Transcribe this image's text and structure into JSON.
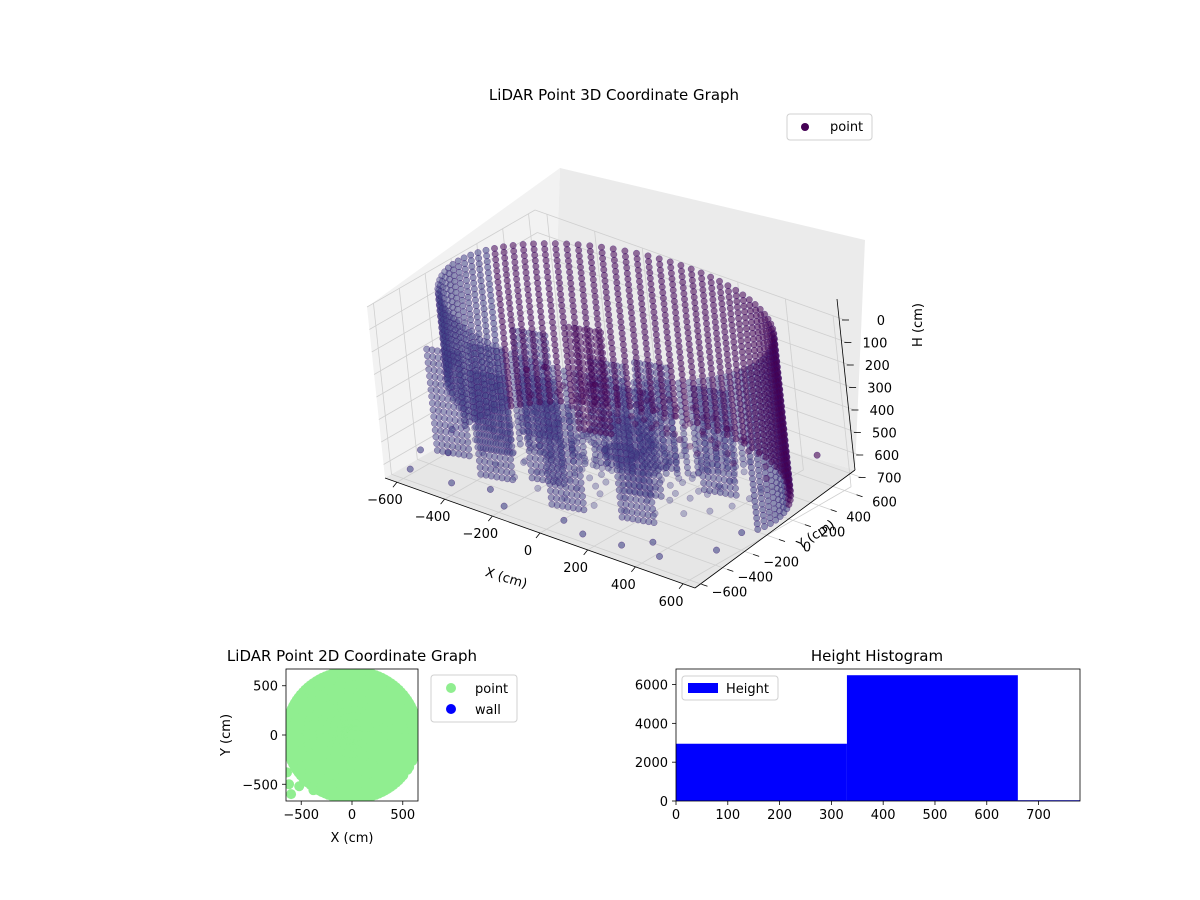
{
  "chart_data": [
    {
      "type": "scatter",
      "projection": "3d",
      "title": "LiDAR Point 3D Coordinate Graph",
      "xlabel": "X (cm)",
      "ylabel": "Y (cm)",
      "zlabel": "H (cm)",
      "xlim": [
        -650,
        650
      ],
      "ylim": [
        -650,
        650
      ],
      "zlim": [
        0,
        760
      ],
      "z_inverted": true,
      "xticks": [
        -600,
        -400,
        -200,
        0,
        200,
        400,
        600
      ],
      "yticks": [
        -600,
        -400,
        -200,
        0,
        200,
        400,
        600
      ],
      "zticks": [
        0,
        100,
        200,
        300,
        400,
        500,
        600,
        700
      ],
      "grid": true,
      "legend": {
        "placement": "top-right",
        "entries": [
          "point"
        ]
      },
      "series": [
        {
          "name": "point",
          "color": "#440154",
          "structure": {
            "outer_ring_radius": 620,
            "height_range": [
              0,
              700
            ],
            "height_step": 25,
            "angle_step_deg": 4
          },
          "outliers": [
            [
              -640,
              -140,
              710
            ],
            [
              -560,
              -610,
              700
            ],
            [
              -470,
              -470,
              640
            ],
            [
              -250,
              -560,
              690
            ],
            [
              180,
              -640,
              700
            ],
            [
              410,
              -520,
              690
            ],
            [
              600,
              -380,
              700
            ],
            [
              -600,
              150,
              600
            ],
            [
              -520,
              380,
              560
            ],
            [
              640,
              -250,
              650
            ],
            [
              -380,
              -620,
              690
            ],
            [
              320,
              -600,
              710
            ],
            [
              -620,
              -420,
              700
            ],
            [
              520,
              560,
              620
            ],
            [
              -150,
              -640,
              700
            ],
            [
              80,
              -600,
              690
            ],
            [
              600,
              200,
              560
            ],
            [
              -640,
              450,
              640
            ],
            [
              -440,
              600,
              680
            ],
            [
              480,
              -600,
              700
            ]
          ]
        }
      ]
    },
    {
      "type": "scatter",
      "title": "LiDAR Point 2D Coordinate Graph",
      "xlabel": "X (cm)",
      "ylabel": "Y (cm)",
      "xlim": [
        -650,
        650
      ],
      "ylim": [
        -670,
        670
      ],
      "xticks": [
        -500,
        0,
        500
      ],
      "yticks": [
        -500,
        0,
        500
      ],
      "legend": {
        "placement": "outside-right",
        "entries": [
          "point",
          "wall"
        ]
      },
      "series": [
        {
          "name": "point",
          "color": "#90ee90",
          "region": "disc",
          "radius": 650
        },
        {
          "name": "wall",
          "color": "#0000ff",
          "points": []
        }
      ]
    },
    {
      "type": "bar",
      "histogram": true,
      "title": "Height Histogram",
      "xlabel": "",
      "ylabel": "",
      "xlim": [
        0,
        780
      ],
      "ylim": [
        0,
        6800
      ],
      "xticks": [
        0,
        100,
        200,
        300,
        400,
        500,
        600,
        700
      ],
      "yticks": [
        0,
        2000,
        4000,
        6000
      ],
      "legend": {
        "placement": "top-left",
        "entries": [
          "Height"
        ]
      },
      "series": [
        {
          "name": "Height",
          "color": "#0000ff",
          "bins": [
            0,
            330,
            660,
            780
          ],
          "values": [
            2950,
            6480,
            40
          ]
        }
      ]
    }
  ]
}
